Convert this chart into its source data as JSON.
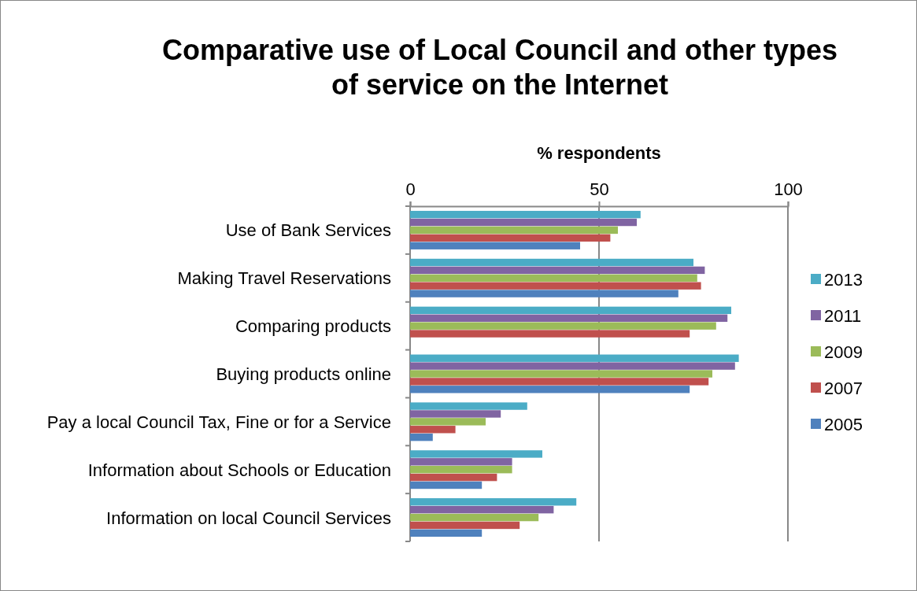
{
  "chart_data": {
    "type": "bar",
    "orientation": "horizontal",
    "title": "Comparative use of Local Council and other types of service on the Internet",
    "xlabel": "% respondents",
    "categories": [
      "Use of Bank Services",
      "Making Travel Reservations",
      "Comparing products",
      "Buying products online",
      "Pay a local Council Tax, Fine or for a Service",
      "Information about Schools or Education",
      "Information on local Council Services"
    ],
    "series": [
      {
        "name": "2013",
        "color": "#4bacc6",
        "values": [
          61,
          75,
          85,
          87,
          31,
          35,
          44
        ]
      },
      {
        "name": "2011",
        "color": "#8064a2",
        "values": [
          60,
          78,
          84,
          86,
          24,
          27,
          38
        ]
      },
      {
        "name": "2009",
        "color": "#9bbb59",
        "values": [
          55,
          76,
          81,
          80,
          20,
          27,
          34
        ]
      },
      {
        "name": "2007",
        "color": "#c0504d",
        "values": [
          53,
          77,
          74,
          79,
          12,
          23,
          29
        ]
      },
      {
        "name": "2005",
        "color": "#4f81bd",
        "values": [
          45,
          71,
          null,
          74,
          6,
          19,
          19
        ]
      }
    ],
    "xlim": [
      0,
      100
    ],
    "xticks": [
      0,
      50,
      100
    ],
    "grid": "x",
    "legend": "right"
  }
}
